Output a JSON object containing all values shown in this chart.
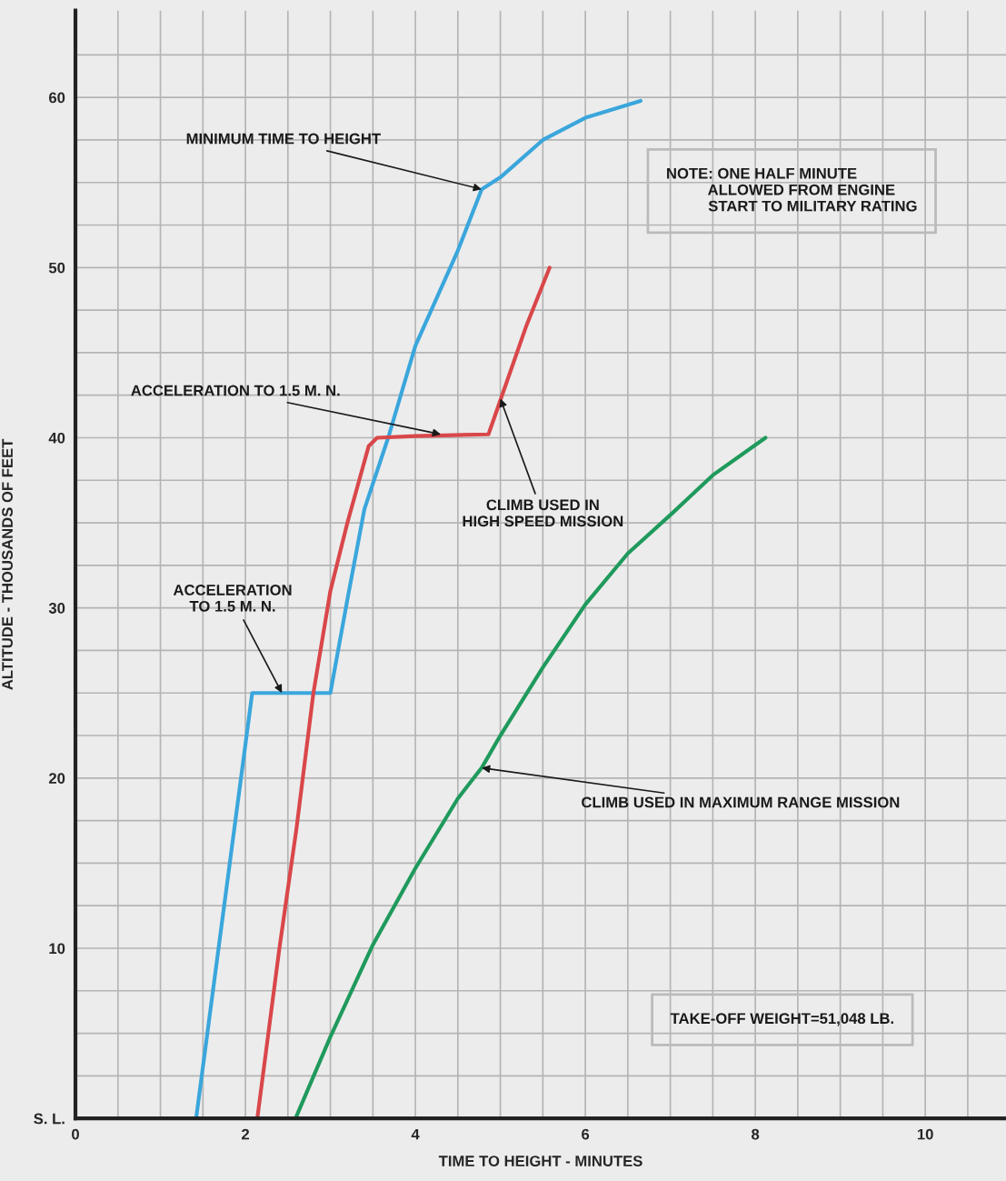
{
  "chart_data": {
    "type": "line",
    "xlabel": "TIME TO HEIGHT - MINUTES",
    "ylabel": "ALTITUDE - THOUSANDS OF FEET",
    "xlim": [
      0,
      10.95
    ],
    "ylim": [
      0,
      65.1
    ],
    "xticks": [
      0,
      {
        "value": 0.5,
        "label": null
      },
      {
        "value": 1,
        "label": null
      },
      {
        "value": 1.5,
        "label": null
      },
      2,
      {
        "value": 2.5,
        "label": null
      },
      {
        "value": 3,
        "label": null
      },
      {
        "value": 3.5,
        "label": null
      },
      4,
      {
        "value": 4.5,
        "label": null
      },
      {
        "value": 5,
        "label": null
      },
      {
        "value": 5.5,
        "label": null
      },
      6,
      {
        "value": 6.5,
        "label": null
      },
      {
        "value": 7,
        "label": null
      },
      {
        "value": 7.5,
        "label": null
      },
      8,
      {
        "value": 8.5,
        "label": null
      },
      {
        "value": 9,
        "label": null
      },
      {
        "value": 9.5,
        "label": null
      },
      10,
      {
        "value": 10.5,
        "label": null
      }
    ],
    "yticks": [
      {
        "value": 0,
        "label": "S. L."
      },
      {
        "value": 2.5,
        "label": null
      },
      {
        "value": 5,
        "label": null
      },
      {
        "value": 7.5,
        "label": null
      },
      10,
      {
        "value": 12.5,
        "label": null
      },
      {
        "value": 15,
        "label": null
      },
      {
        "value": 17.5,
        "label": null
      },
      20,
      {
        "value": 22.5,
        "label": null
      },
      {
        "value": 25,
        "label": null
      },
      {
        "value": 27.5,
        "label": null
      },
      30,
      {
        "value": 32.5,
        "label": null
      },
      {
        "value": 35,
        "label": null
      },
      {
        "value": 37.5,
        "label": null
      },
      40,
      {
        "value": 42.5,
        "label": null
      },
      {
        "value": 45,
        "label": null
      },
      {
        "value": 47.5,
        "label": null
      },
      50,
      {
        "value": 52.5,
        "label": null
      },
      {
        "value": 55,
        "label": null
      },
      {
        "value": 57.5,
        "label": null
      },
      60,
      {
        "value": 62.5,
        "label": null
      }
    ],
    "grid": true,
    "series": [
      {
        "color": "#3aa6dc",
        "x": [
          1.42,
          2.08,
          3.0,
          3.2,
          3.4,
          3.68,
          4.0,
          4.5,
          4.78,
          5.0,
          5.5,
          6.0,
          6.65
        ],
        "values": [
          0,
          25,
          25,
          30.5,
          35.8,
          40,
          45.4,
          51,
          54.6,
          55.3,
          57.5,
          58.8,
          59.8
        ]
      },
      {
        "color": "#d9474a",
        "x": [
          2.14,
          2.4,
          2.6,
          2.8,
          3.0,
          3.2,
          3.45,
          3.55,
          4.0,
          4.86,
          5.0,
          5.3,
          5.58
        ],
        "values": [
          0,
          10,
          17,
          25,
          31,
          35,
          39.5,
          40,
          40.1,
          40.2,
          42.2,
          46.5,
          50
        ]
      },
      {
        "color": "#1f9a5c",
        "x": [
          2.59,
          3.0,
          3.5,
          4.0,
          4.5,
          4.78,
          5.0,
          5.5,
          6.0,
          6.5,
          7.03,
          7.5,
          8.12
        ],
        "values": [
          0,
          4.8,
          10.2,
          14.7,
          18.8,
          20.6,
          22.5,
          26.5,
          30.2,
          33.2,
          35.6,
          37.8,
          40
        ]
      }
    ],
    "annotations": [
      {
        "text": "MINIMUM TIME TO HEIGHT",
        "x": 4.78,
        "y": 54.6
      },
      {
        "text": "ACCELERATION TO 1.5 M. N.",
        "x": 4.3,
        "y": 40.2
      },
      {
        "text": "ACCELERATION\nTO 1.5 M. N.",
        "x": 2.43,
        "y": 25
      },
      {
        "text": "CLIMB USED IN\nHIGH SPEED MISSION",
        "x": 5.0,
        "y": 42.3
      },
      {
        "text": "CLIMB USED IN MAXIMUM RANGE MISSION",
        "x": 4.78,
        "y": 20.6
      },
      "NOTE: ONE HALF MINUTE\n          ALLOWED FROM ENGINE\n          START TO MILITARY RATING",
      "TAKE-OFF WEIGHT=51,048 LB."
    ]
  }
}
